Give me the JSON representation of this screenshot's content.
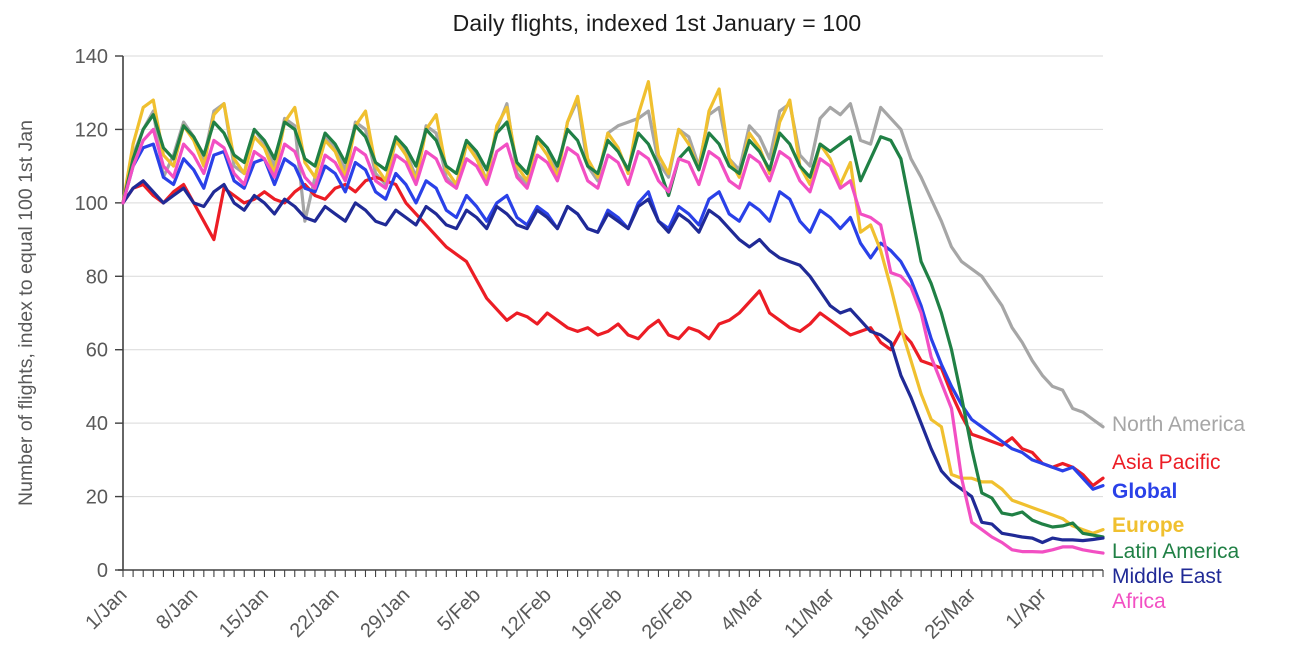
{
  "chart_data": {
    "type": "line",
    "title": "Daily flights, indexed 1st January = 100",
    "ylabel": "Number of flights, index to equal 100 1st Jan",
    "xlabel": "",
    "ylim": [
      0,
      140
    ],
    "yticks": [
      0,
      20,
      40,
      60,
      80,
      100,
      120,
      140
    ],
    "n_points": 98,
    "x_unit": "day",
    "x_start_label": "1/Jan",
    "xtick_labels": [
      "1/Jan",
      "8/Jan",
      "15/Jan",
      "22/Jan",
      "29/Jan",
      "5/Feb",
      "12/Feb",
      "19/Feb",
      "26/Feb",
      "4/Mar",
      "11/Mar",
      "18/Mar",
      "25/Mar",
      "1/Apr"
    ],
    "xtick_indices": [
      0,
      7,
      14,
      21,
      28,
      35,
      42,
      49,
      56,
      63,
      70,
      77,
      84,
      91
    ],
    "grid": "horizontal",
    "legend_position": "right",
    "series": [
      {
        "name": "North America",
        "color": "#a6a6a6",
        "bold": false,
        "values": [
          100,
          113,
          120,
          125,
          107,
          113,
          122,
          118,
          112,
          125,
          127,
          110,
          108,
          120,
          116,
          110,
          123,
          121,
          95,
          107,
          118,
          115,
          109,
          122,
          120,
          108,
          105,
          117,
          114,
          107,
          121,
          119,
          107,
          104,
          116,
          113,
          106,
          120,
          127,
          108,
          105,
          118,
          115,
          108,
          122,
          128,
          110,
          106,
          119,
          121,
          122,
          123,
          125,
          111,
          107,
          120,
          118,
          110,
          124,
          126,
          112,
          109,
          121,
          118,
          112,
          125,
          127,
          113,
          110,
          123,
          126,
          124,
          127,
          117,
          116,
          126,
          123,
          120,
          112,
          107,
          101,
          95,
          88,
          84,
          82,
          80,
          76,
          72,
          66,
          62,
          57,
          53,
          50,
          49,
          44,
          43,
          41,
          39
        ]
      },
      {
        "name": "Asia Pacific",
        "color": "#ec1d25",
        "bold": false,
        "values": [
          100,
          104,
          105,
          102,
          100,
          103,
          105,
          100,
          95,
          90,
          104,
          102,
          100,
          101,
          103,
          101,
          100,
          103,
          105,
          102,
          101,
          104,
          105,
          103,
          106,
          107,
          106,
          105,
          100,
          97,
          94,
          91,
          88,
          86,
          84,
          79,
          74,
          71,
          68,
          70,
          69,
          67,
          70,
          68,
          66,
          65,
          66,
          64,
          65,
          67,
          64,
          63,
          66,
          68,
          64,
          63,
          66,
          65,
          63,
          67,
          68,
          70,
          73,
          76,
          70,
          68,
          66,
          65,
          67,
          70,
          68,
          66,
          64,
          65,
          66,
          62,
          60,
          65,
          62,
          57,
          56,
          55,
          48,
          42,
          37,
          36,
          35,
          34,
          36,
          33,
          32,
          29,
          28,
          29,
          28,
          26,
          23,
          25
        ]
      },
      {
        "name": "Global",
        "color": "#2a41e8",
        "bold": true,
        "values": [
          100,
          110,
          115,
          116,
          107,
          105,
          112,
          109,
          104,
          113,
          114,
          106,
          104,
          111,
          112,
          105,
          112,
          110,
          104,
          103,
          110,
          108,
          103,
          111,
          109,
          103,
          101,
          108,
          105,
          100,
          106,
          104,
          98,
          96,
          102,
          99,
          95,
          100,
          102,
          96,
          94,
          99,
          97,
          93,
          99,
          97,
          93,
          92,
          98,
          96,
          93,
          100,
          103,
          95,
          93,
          99,
          97,
          94,
          101,
          103,
          97,
          95,
          100,
          98,
          95,
          103,
          101,
          95,
          92,
          98,
          96,
          93,
          96,
          89,
          85,
          89,
          87,
          84,
          79,
          72,
          63,
          56,
          50,
          45,
          41,
          39,
          37,
          35,
          33,
          32,
          30,
          29,
          28,
          27,
          28,
          25,
          22,
          23
        ]
      },
      {
        "name": "Europe",
        "color": "#f0c02f",
        "bold": true,
        "values": [
          100,
          116,
          126,
          128,
          113,
          110,
          121,
          117,
          110,
          124,
          127,
          112,
          108,
          118,
          115,
          108,
          122,
          126,
          111,
          107,
          117,
          114,
          107,
          121,
          125,
          110,
          106,
          117,
          113,
          106,
          120,
          124,
          109,
          105,
          116,
          112,
          106,
          121,
          126,
          110,
          106,
          117,
          113,
          107,
          122,
          129,
          112,
          107,
          119,
          115,
          108,
          124,
          133,
          113,
          108,
          120,
          116,
          109,
          125,
          131,
          112,
          107,
          119,
          115,
          108,
          122,
          128,
          110,
          105,
          116,
          112,
          105,
          111,
          92,
          94,
          87,
          77,
          66,
          57,
          48,
          41,
          39,
          26,
          25,
          25,
          24,
          24,
          22,
          19,
          18,
          17,
          16,
          15,
          14,
          12,
          11,
          10,
          11
        ]
      },
      {
        "name": "Latin America",
        "color": "#208045",
        "bold": false,
        "values": [
          100,
          112,
          120,
          124,
          115,
          112,
          121,
          118,
          113,
          122,
          119,
          113,
          111,
          120,
          117,
          112,
          122,
          120,
          112,
          110,
          119,
          116,
          111,
          121,
          118,
          111,
          109,
          118,
          115,
          110,
          120,
          117,
          110,
          108,
          117,
          114,
          109,
          119,
          122,
          111,
          108,
          118,
          115,
          110,
          120,
          117,
          110,
          108,
          117,
          114,
          109,
          119,
          116,
          110,
          102,
          112,
          115,
          109,
          119,
          116,
          110,
          108,
          117,
          114,
          109,
          119,
          116,
          110,
          107,
          116,
          114,
          116,
          118,
          106,
          112,
          118,
          117,
          112,
          98,
          84,
          78,
          70,
          60,
          47,
          33,
          21,
          19.6,
          15.5,
          15,
          15.8,
          13.6,
          12.5,
          11.7,
          12,
          12.8,
          10,
          9.5,
          9
        ]
      },
      {
        "name": "Middle East",
        "color": "#202a96",
        "bold": false,
        "values": [
          100,
          104,
          106,
          103,
          100,
          102,
          104,
          100,
          99,
          103,
          105,
          100,
          98,
          102,
          100,
          97,
          101,
          99,
          96,
          95,
          99,
          97,
          95,
          100,
          98,
          95,
          94,
          98,
          96,
          94,
          99,
          97,
          94,
          93,
          98,
          96,
          93,
          99,
          97,
          94,
          93,
          98,
          96,
          93,
          99,
          97,
          93,
          92,
          97,
          95,
          93,
          99,
          101,
          95,
          92,
          97,
          95,
          92,
          98,
          96,
          93,
          90,
          88,
          90,
          87,
          85,
          84,
          83,
          80,
          76,
          72,
          70,
          71,
          68,
          65,
          64,
          62,
          53,
          47,
          40,
          33,
          27,
          24,
          22,
          20,
          13,
          12.5,
          10,
          9.5,
          9,
          8.7,
          7.5,
          8.7,
          8.2,
          8.2,
          8,
          8.3,
          8.7
        ]
      },
      {
        "name": "Africa",
        "color": "#f24fc3",
        "bold": false,
        "values": [
          100,
          110,
          117,
          120,
          110,
          107,
          116,
          113,
          108,
          117,
          115,
          108,
          105,
          114,
          112,
          107,
          116,
          114,
          107,
          104,
          113,
          111,
          106,
          115,
          113,
          106,
          104,
          113,
          111,
          105,
          114,
          112,
          106,
          104,
          112,
          110,
          105,
          114,
          116,
          107,
          104,
          113,
          111,
          106,
          115,
          113,
          106,
          104,
          113,
          111,
          105,
          114,
          112,
          106,
          103,
          112,
          111,
          105,
          114,
          112,
          106,
          104,
          113,
          111,
          106,
          114,
          112,
          106,
          103,
          112,
          110,
          104,
          106,
          97,
          96,
          94,
          81,
          80,
          77,
          70,
          58,
          51,
          44,
          25,
          13,
          11,
          9,
          7.5,
          5.5,
          5,
          5,
          4.9,
          5.5,
          6.3,
          6.3,
          5.5,
          5,
          4.6
        ]
      }
    ]
  }
}
